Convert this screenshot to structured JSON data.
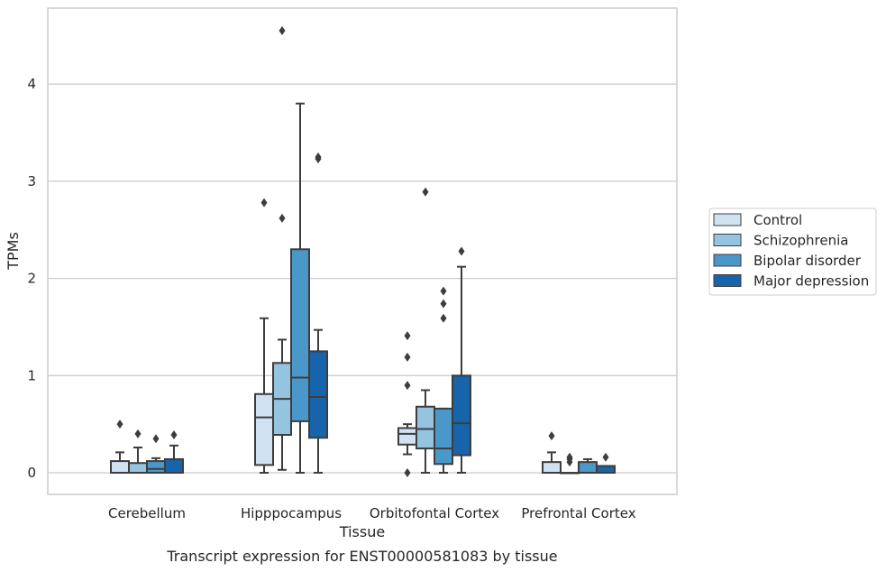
{
  "chart_data": {
    "type": "box",
    "title": "Transcript expression for ENST00000581083 by tissue",
    "xlabel": "Tissue",
    "ylabel": "TPMs",
    "ylim": [
      -0.22,
      4.8
    ],
    "yticks": [
      0,
      1,
      2,
      3,
      4
    ],
    "grid": "horizontal",
    "legend_position": "right",
    "categories": [
      "Cerebellum",
      "Hipppocampus",
      "Orbitofontal Cortex",
      "Prefrontal Cortex"
    ],
    "series": [
      {
        "name": "Control",
        "color": "#d0e1f2",
        "boxes": [
          {
            "whislo": 0,
            "q1": 0,
            "med": 0,
            "q3": 0.12,
            "whishi": 0.21,
            "fliers": [
              0.5
            ]
          },
          {
            "whislo": 0,
            "q1": 0.08,
            "med": 0.57,
            "q3": 0.81,
            "whishi": 1.59,
            "fliers": [
              2.78
            ]
          },
          {
            "whislo": 0.19,
            "q1": 0.29,
            "med": 0.4,
            "q3": 0.46,
            "whishi": 0.5,
            "fliers": [
              0,
              0.9,
              1.19,
              1.41
            ]
          },
          {
            "whislo": 0,
            "q1": 0,
            "med": 0,
            "q3": 0.11,
            "whishi": 0.21,
            "fliers": [
              0.38
            ]
          }
        ]
      },
      {
        "name": "Schizophrenia",
        "color": "#94c4df",
        "boxes": [
          {
            "whislo": 0,
            "q1": 0,
            "med": 0,
            "q3": 0.1,
            "whishi": 0.26,
            "fliers": [
              0.4
            ]
          },
          {
            "whislo": 0.03,
            "q1": 0.39,
            "med": 0.76,
            "q3": 1.13,
            "whishi": 1.37,
            "fliers": [
              2.62,
              4.55
            ]
          },
          {
            "whislo": 0,
            "q1": 0.25,
            "med": 0.45,
            "q3": 0.68,
            "whishi": 0.85,
            "fliers": [
              2.89
            ]
          },
          {
            "whislo": 0,
            "q1": 0,
            "med": 0,
            "q3": 0,
            "whishi": 0,
            "fliers": [
              0.11,
              0.14,
              0.16
            ]
          }
        ]
      },
      {
        "name": "Bipolar disorder",
        "color": "#4a98c9",
        "boxes": [
          {
            "whislo": 0,
            "q1": 0,
            "med": 0.04,
            "q3": 0.12,
            "whishi": 0.15,
            "fliers": [
              0.35
            ]
          },
          {
            "whislo": 0,
            "q1": 0.53,
            "med": 0.98,
            "q3": 2.3,
            "whishi": 3.8,
            "fliers": []
          },
          {
            "whislo": 0,
            "q1": 0.09,
            "med": 0.25,
            "q3": 0.66,
            "whishi": 0.66,
            "fliers": [
              1.59,
              1.74,
              1.87
            ]
          },
          {
            "whislo": 0,
            "q1": 0,
            "med": 0,
            "q3": 0.11,
            "whishi": 0.14,
            "fliers": []
          }
        ]
      },
      {
        "name": "Major depression",
        "color": "#1764ab",
        "boxes": [
          {
            "whislo": 0,
            "q1": 0,
            "med": 0,
            "q3": 0.14,
            "whishi": 0.28,
            "fliers": [
              0.39
            ]
          },
          {
            "whislo": 0,
            "q1": 0.36,
            "med": 0.78,
            "q3": 1.25,
            "whishi": 1.47,
            "fliers": [
              3.23,
              3.25
            ]
          },
          {
            "whislo": 0,
            "q1": 0.18,
            "med": 0.51,
            "q3": 1.0,
            "whishi": 2.12,
            "fliers": [
              2.28
            ]
          },
          {
            "whislo": 0,
            "q1": 0,
            "med": 0,
            "q3": 0.07,
            "whishi": 0.07,
            "fliers": [
              0.16
            ]
          }
        ]
      }
    ]
  },
  "colors": {
    "grid": "#cccccc",
    "frame": "#cccccc",
    "line": "#3d3d3d",
    "flier": "#3d3d3d"
  }
}
